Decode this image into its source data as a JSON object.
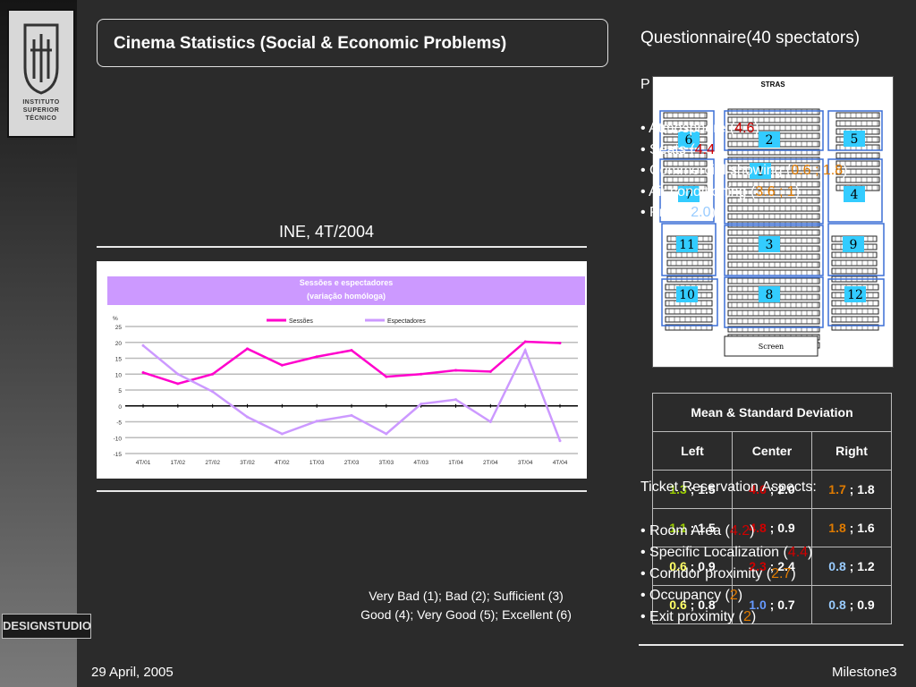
{
  "slide": {
    "title": "Cinema Statistics (Social & Economic Problems)",
    "questionnaire_title": "Questionnaire(40 spectators)",
    "ine_title": "INE, 4T/2004",
    "logo_text": [
      "INSTITUTO",
      "SUPERIOR",
      "TÉCNICO"
    ],
    "brand": "DESIGNSTUDIO",
    "footer_date": "29 April, 2005",
    "footer_milestone": "Milestone3"
  },
  "chart_data": {
    "type": "line",
    "title": "Sessões e espectadores",
    "subtitle": "(variação homóloga)",
    "ylabel": "%",
    "ylim": [
      -15,
      25
    ],
    "yticks": [
      25,
      20,
      15,
      10,
      5,
      0,
      -5,
      -10,
      -15
    ],
    "categories": [
      "4T/01",
      "1T/02",
      "2T/02",
      "3T/02",
      "4T/02",
      "1T/03",
      "2T/03",
      "3T/03",
      "4T/03",
      "1T/04",
      "2T/04",
      "3T/04",
      "4T/04"
    ],
    "series": [
      {
        "name": "Sessões",
        "color": "#ff00cc",
        "values": [
          10.5,
          7,
          10,
          18,
          12.8,
          15.5,
          17.5,
          9.2,
          10,
          11.2,
          10.8,
          20.2,
          19.8
        ]
      },
      {
        "name": "Espectadores",
        "color": "#cc99ff",
        "values": [
          19,
          10,
          4.5,
          -3.5,
          -8.8,
          -4.8,
          -3,
          -8.8,
          0.6,
          2,
          -5,
          17.5,
          -11
        ]
      }
    ],
    "legend_position": "top",
    "grid": true
  },
  "seating": {
    "top_label": "STRAS",
    "screen_label": "Screen",
    "zones": [
      "1",
      "2",
      "3",
      "4",
      "5",
      "6",
      "7",
      "8",
      "9",
      "10",
      "11",
      "12"
    ]
  },
  "overlay_text": {
    "prefix": "P",
    "lines": [
      {
        "label": "• Atmosphere (",
        "value": "4.6",
        "suffix": ")",
        "value_color": "red"
      },
      {
        "label": "• Seats (",
        "value": "4.4",
        "suffix": ")",
        "value_color": "red"
      },
      {
        "label": "• Commercial showing (",
        "value": "0.6 ; 1.8",
        "suffix": ")",
        "value_color": "orange"
      },
      {
        "label": "• Air conditioning (",
        "value": "3.6 ; 1",
        "suffix": ")",
        "value_color": "orange"
      },
      {
        "label": "• Price (",
        "value": "2.0",
        "suffix": ")",
        "value_color": "lblue"
      }
    ],
    "ticket_heading": "Ticket Reservation Aspects:",
    "ticket_lines": [
      {
        "label": "• Room Area (",
        "value": "4.2",
        "suffix": ")",
        "value_color": "red"
      },
      {
        "label": "• Specific Localization (",
        "value": "4.4",
        "suffix": ")",
        "value_color": "red"
      },
      {
        "label": "• Corridor proximity (",
        "value": "2.7",
        "suffix": ")",
        "value_color": "orange"
      },
      {
        "label": "• Occupancy (",
        "value": "2",
        "suffix": ")",
        "value_color": "orange"
      },
      {
        "label": "• Exit proximity (",
        "value": "2",
        "suffix": ")",
        "value_color": "orange"
      }
    ]
  },
  "mean_std_table": {
    "heading": "Mean & Standard Deviation",
    "columns": [
      "Left",
      "Center",
      "Right"
    ],
    "rows": [
      [
        {
          "mean": "1.3",
          "std": " ; 1.5",
          "color": "green"
        },
        {
          "mean": "4.6",
          "std": " ; 2.0",
          "color": "red"
        },
        {
          "mean": "1.7",
          "std": " ; 1.8",
          "color": "orange"
        }
      ],
      [
        {
          "mean": "1.1",
          "std": " ; 1.5",
          "color": "green"
        },
        {
          "mean": "4.8",
          "std": " ; 0.9",
          "color": "red"
        },
        {
          "mean": "1.8",
          "std": " ; 1.6",
          "color": "orange"
        }
      ],
      [
        {
          "mean": "0.6",
          "std": " ; 0.9",
          "color": "yellow"
        },
        {
          "mean": "2.3",
          "std": " ; 2.4",
          "color": "red"
        },
        {
          "mean": "0.8",
          "std": " ; 1.2",
          "color": "lblue"
        }
      ],
      [
        {
          "mean": "0.6",
          "std": " ; 0.8",
          "color": "yellow"
        },
        {
          "mean": "1.0",
          "std": " ; 0.7",
          "color": "blue"
        },
        {
          "mean": "0.8",
          "std": " ; 0.9",
          "color": "lblue"
        }
      ]
    ]
  },
  "scale_legend": [
    "Very Bad (1); Bad (2); Sufficient (3)",
    "Good (4); Very Good (5); Excellent (6)"
  ]
}
